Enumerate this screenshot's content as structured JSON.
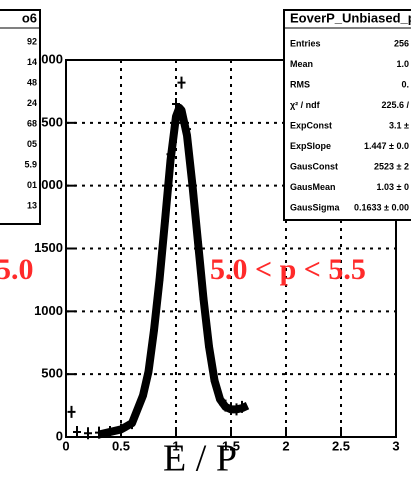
{
  "chart_data": {
    "type": "line",
    "x_label": "E / P",
    "xlim": [
      0,
      3
    ],
    "xticks": [
      0,
      0.5,
      1,
      1.5,
      2,
      2.5,
      3
    ],
    "ylim": [
      0,
      3000
    ],
    "yticks": [
      0,
      500,
      1000,
      1500,
      2000,
      2500,
      3000
    ],
    "grid": true,
    "series": [
      {
        "color": "#000000",
        "style": "markers",
        "x": [
          0.05,
          0.1,
          0.2,
          0.3,
          0.4,
          0.5,
          0.6,
          0.7,
          0.8,
          0.85,
          0.9,
          0.95,
          1.0,
          1.05,
          1.1,
          1.15,
          1.2,
          1.25,
          1.3,
          1.35,
          1.4,
          1.45,
          1.5,
          1.55,
          1.6
        ],
        "values": [
          200,
          40,
          30,
          35,
          40,
          60,
          110,
          330,
          850,
          1250,
          1720,
          2250,
          2650,
          2820,
          2450,
          2000,
          1550,
          1100,
          720,
          450,
          300,
          250,
          230,
          220,
          240
        ]
      },
      {
        "color": "#000000",
        "style": "fit",
        "x": [
          0.3,
          0.5,
          0.6,
          0.7,
          0.75,
          0.8,
          0.85,
          0.9,
          0.95,
          1.0,
          1.03,
          1.05,
          1.1,
          1.15,
          1.2,
          1.25,
          1.3,
          1.35,
          1.4,
          1.45,
          1.5,
          1.55,
          1.6,
          1.65
        ],
        "values": [
          20,
          60,
          110,
          330,
          520,
          850,
          1250,
          1720,
          2200,
          2550,
          2620,
          2600,
          2400,
          2000,
          1550,
          1100,
          720,
          450,
          300,
          240,
          220,
          220,
          230,
          250
        ]
      }
    ],
    "annotations": [
      "5.0",
      "5.0 < p < 5.5"
    ],
    "left_stats": {
      "title": "o6",
      "values": [
        "92",
        "14",
        "48",
        "24",
        "68",
        "05",
        "5.9",
        "01",
        "13"
      ]
    },
    "right_stats": {
      "title": "EoverP_Unbiased_p",
      "rows": [
        [
          "Entries",
          "256"
        ],
        [
          "Mean",
          "1.0"
        ],
        [
          "RMS",
          "0."
        ],
        [
          "χ² / ndf",
          "225.6 /"
        ],
        [
          "ExpConst",
          "3.1 ±"
        ],
        [
          "ExpSlope",
          "1.447 ± 0.0"
        ],
        [
          "GausConst",
          "2523 ± 2"
        ],
        [
          "GausMean",
          "1.03 ± 0"
        ],
        [
          "GausSigma",
          "0.1633 ± 0.00"
        ]
      ]
    }
  }
}
